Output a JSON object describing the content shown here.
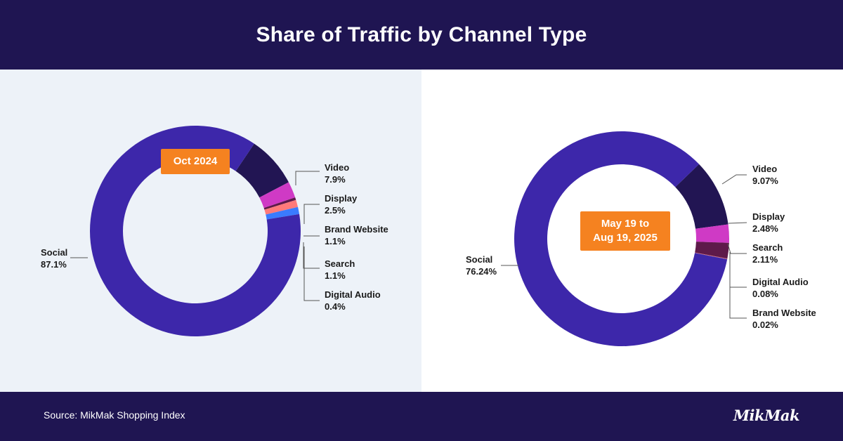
{
  "title": "Share of Traffic by Channel Type",
  "footer": {
    "source": "Source: MikMak Shopping Index",
    "logo": "MikMak"
  },
  "colors": {
    "header_bg": "#1f1552",
    "left_panel_bg": "#edf2f8",
    "badge": "#f58220",
    "Social": "#3d27aa",
    "Video": "#221553",
    "Display": "#cf3ac5",
    "Brand Website": "#ff7a7a",
    "Search": "#3a7bff",
    "Digital Audio": "#5e1a4a",
    "Search (second chart)": "#5e1a4a",
    "Digital Audio (second chart)": "#d05a6a",
    "Brand Website (second chart)": "#3a7bff"
  },
  "chart_data": [
    {
      "type": "pie",
      "title": "Oct 2024",
      "categories": [
        "Video",
        "Display",
        "Digital Audio",
        "Brand Website",
        "Search",
        "Social"
      ],
      "labels": {
        "Video": "7.9%",
        "Display": "2.5%",
        "Brand Website": "1.1%",
        "Search": "1.1%",
        "Digital Audio": "0.4%",
        "Social": "87.1%"
      },
      "values": [
        7.9,
        2.5,
        0.4,
        1.1,
        1.1,
        87.1
      ]
    },
    {
      "type": "pie",
      "title": "May 19 to\nAug 19, 2025",
      "categories": [
        "Video",
        "Display",
        "Search",
        "Digital Audio",
        "Brand Website",
        "Social"
      ],
      "labels": {
        "Video": "9.07%",
        "Display": "2.48%",
        "Search": "2.11%",
        "Digital Audio": "0.08%",
        "Brand Website": "0.02%",
        "Social": "76.24%"
      },
      "values": [
        9.07,
        2.48,
        2.11,
        0.08,
        0.02,
        76.24
      ]
    }
  ]
}
